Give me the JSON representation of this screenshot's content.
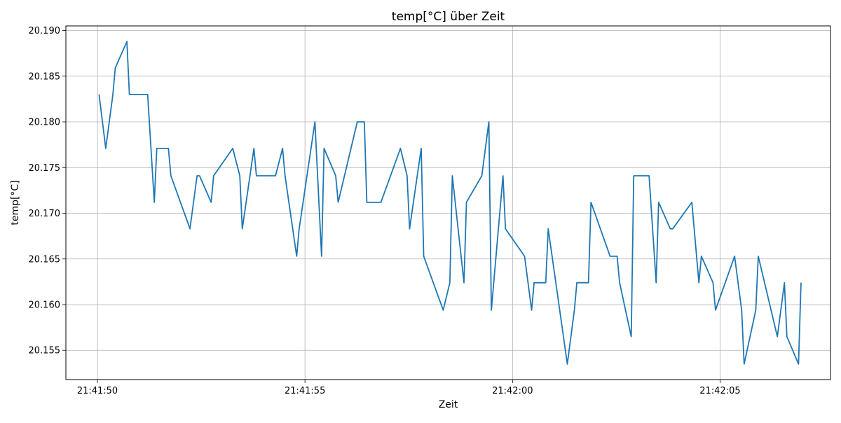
{
  "chart_data": {
    "type": "line",
    "title": "temp[°C] über Zeit",
    "xlabel": "Zeit",
    "ylabel": "temp[°C]",
    "grid": true,
    "line_color": "#1f77b4",
    "x_ticks": [
      "21:41:50",
      "21:41:55",
      "21:42:00",
      "21:42:05"
    ],
    "y_ticks": [
      "20.155",
      "20.160",
      "20.165",
      "20.170",
      "20.175",
      "20.180",
      "20.185",
      "20.190"
    ],
    "xlim": [
      "21:41:49.24",
      "21:42:07.66"
    ],
    "ylim": [
      20.1518,
      20.1905
    ],
    "series": [
      {
        "x": [
          "21:41:50.04",
          "21:41:50.20",
          "21:41:50.37",
          "21:41:50.43",
          "21:41:50.71",
          "21:41:50.77",
          "21:41:51.21",
          "21:41:51.37",
          "21:41:51.43",
          "21:41:51.71",
          "21:41:51.77",
          "21:41:52.23",
          "21:41:52.40",
          "21:41:52.46",
          "21:41:52.74",
          "21:41:52.80",
          "21:41:53.26",
          "21:41:53.43",
          "21:41:53.49",
          "21:41:53.77",
          "21:41:53.83",
          "21:41:54.29",
          "21:41:54.46",
          "21:41:54.52",
          "21:41:54.80",
          "21:41:54.86",
          "21:41:55.24",
          "21:41:55.40",
          "21:41:55.46",
          "21:41:55.74",
          "21:41:55.80",
          "21:41:56.26",
          "21:41:56.43",
          "21:41:56.49",
          "21:41:56.77",
          "21:41:56.83",
          "21:41:57.30",
          "21:41:57.46",
          "21:41:57.52",
          "21:41:57.80",
          "21:41:57.86",
          "21:41:58.33",
          "21:41:58.49",
          "21:41:58.55",
          "21:41:58.83",
          "21:41:58.89",
          "21:41:59.26",
          "21:41:59.43",
          "21:41:59.49",
          "21:41:59.77",
          "21:41:59.83",
          "21:42:00.29",
          "21:42:00.46",
          "21:42:00.52",
          "21:42:00.80",
          "21:42:00.86",
          "21:42:01.32",
          "21:42:01.49",
          "21:42:01.55",
          "21:42:01.83",
          "21:42:01.89",
          "21:42:02.35",
          "21:42:02.52",
          "21:42:02.58",
          "21:42:02.86",
          "21:42:02.92",
          "21:42:03.29",
          "21:42:03.46",
          "21:42:03.52",
          "21:42:03.80",
          "21:42:03.86",
          "21:42:04.32",
          "21:42:04.49",
          "21:42:04.55",
          "21:42:04.83",
          "21:42:04.89",
          "21:42:05.35",
          "21:42:05.52",
          "21:42:05.58",
          "21:42:05.86",
          "21:42:05.92",
          "21:42:06.38",
          "21:42:06.55",
          "21:42:06.61",
          "21:42:06.89",
          "21:42:06.95"
        ],
        "y": [
          20.183,
          20.1771,
          20.1829,
          20.1859,
          20.1888,
          20.183,
          20.183,
          20.1712,
          20.1771,
          20.1771,
          20.1741,
          20.1683,
          20.1741,
          20.1741,
          20.1712,
          20.1741,
          20.1771,
          20.1741,
          20.1683,
          20.1771,
          20.1741,
          20.1741,
          20.1771,
          20.1741,
          20.1653,
          20.1683,
          20.18,
          20.1653,
          20.1771,
          20.1741,
          20.1712,
          20.18,
          20.18,
          20.1712,
          20.1712,
          20.1712,
          20.1771,
          20.1741,
          20.1683,
          20.1771,
          20.1653,
          20.1594,
          20.1624,
          20.1741,
          20.1624,
          20.1712,
          20.1741,
          20.18,
          20.1594,
          20.1741,
          20.1683,
          20.1653,
          20.1594,
          20.1624,
          20.1624,
          20.1683,
          20.1535,
          20.1594,
          20.1624,
          20.1624,
          20.1712,
          20.1653,
          20.1653,
          20.1624,
          20.1565,
          20.1741,
          20.1741,
          20.1624,
          20.1712,
          20.1683,
          20.1683,
          20.1712,
          20.1624,
          20.1653,
          20.1624,
          20.1594,
          20.1653,
          20.1594,
          20.1535,
          20.1594,
          20.1653,
          20.1565,
          20.1624,
          20.1565,
          20.1535,
          20.1624
        ]
      }
    ]
  }
}
